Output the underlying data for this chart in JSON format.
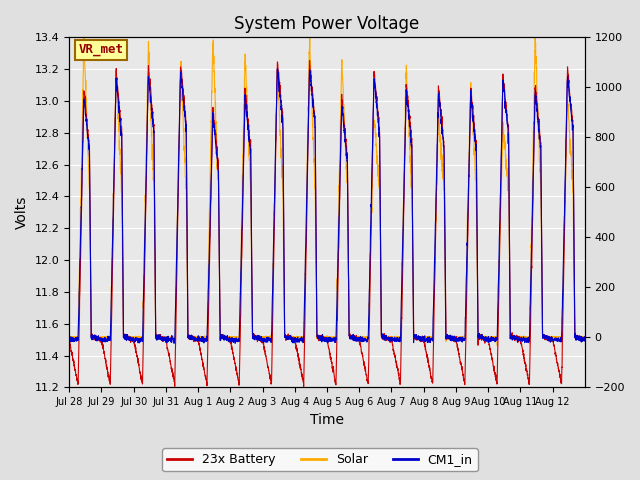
{
  "title": "System Power Voltage",
  "xlabel": "Time",
  "ylabel_left": "Volts",
  "left_ylim": [
    11.2,
    13.4
  ],
  "right_ylim": [
    -200,
    1200
  ],
  "right_yticks": [
    -200,
    0,
    200,
    400,
    600,
    800,
    1000,
    1200
  ],
  "left_yticks": [
    11.2,
    11.4,
    11.6,
    11.8,
    12.0,
    12.2,
    12.4,
    12.6,
    12.8,
    13.0,
    13.2,
    13.4
  ],
  "bg_color": "#e0e0e0",
  "plot_bg_color": "#e8e8e8",
  "grid_color": "white",
  "battery_color": "#cc0000",
  "solar_color": "#ffaa00",
  "cm1_color": "#0000cc",
  "legend_labels": [
    "23x Battery",
    "Solar",
    "CM1_in"
  ],
  "annotation_text": "VR_met",
  "annotation_bg": "#ffff99",
  "annotation_border": "#996600",
  "annotation_text_color": "#990000",
  "num_days": 16,
  "samples_per_day": 200,
  "tick_labels": [
    "Jul 28",
    "Jul 29",
    "Jul 30",
    "Jul 31",
    "Aug 1",
    "Aug 2",
    "Aug 3",
    "Aug 4",
    "Aug 5",
    "Aug 6",
    "Aug 7",
    "Aug 8",
    "Aug 9",
    "Aug 10",
    "Aug 11",
    "Aug 12"
  ]
}
